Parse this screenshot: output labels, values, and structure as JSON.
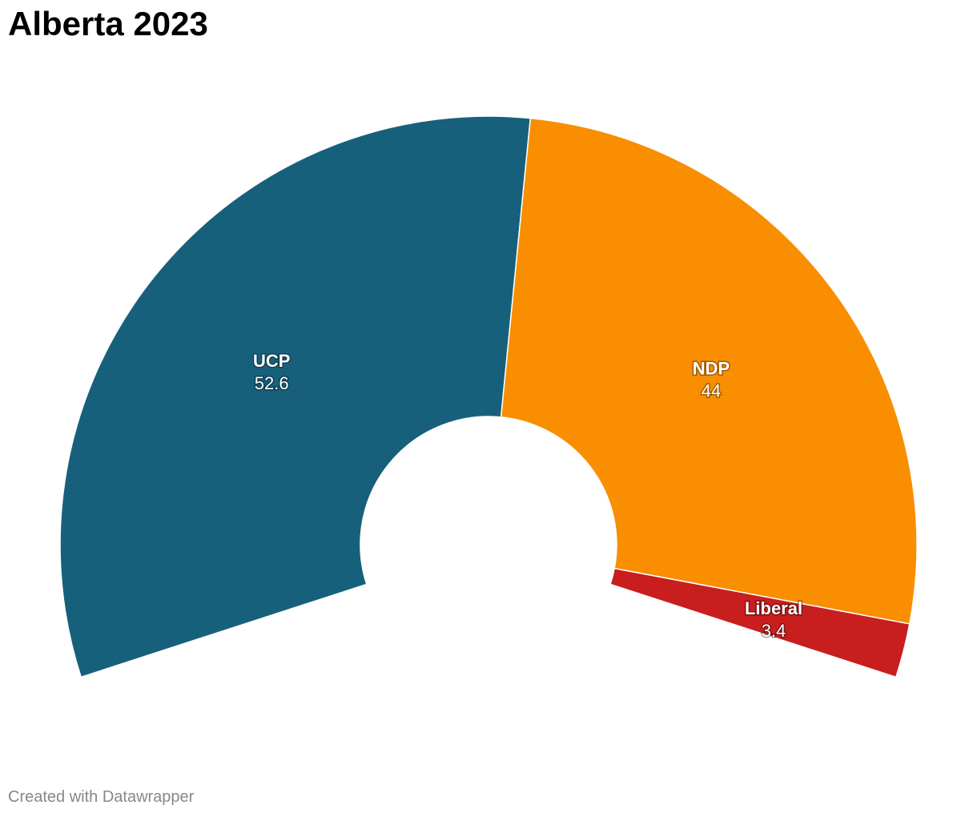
{
  "header": {
    "title": "Alberta 2023"
  },
  "footer": {
    "credit": "Created with Datawrapper"
  },
  "chart_data": {
    "type": "pie",
    "subtype": "semicircle-donut",
    "title": "Alberta 2023",
    "total_arc_degrees": 216,
    "categories": [
      "UCP",
      "NDP",
      "Liberal"
    ],
    "values": [
      52.6,
      44,
      3.4
    ],
    "colors": [
      "#17607b",
      "#f88e00",
      "#c81e1e"
    ],
    "labels": [
      "52.6",
      "44",
      "3.4"
    ]
  }
}
